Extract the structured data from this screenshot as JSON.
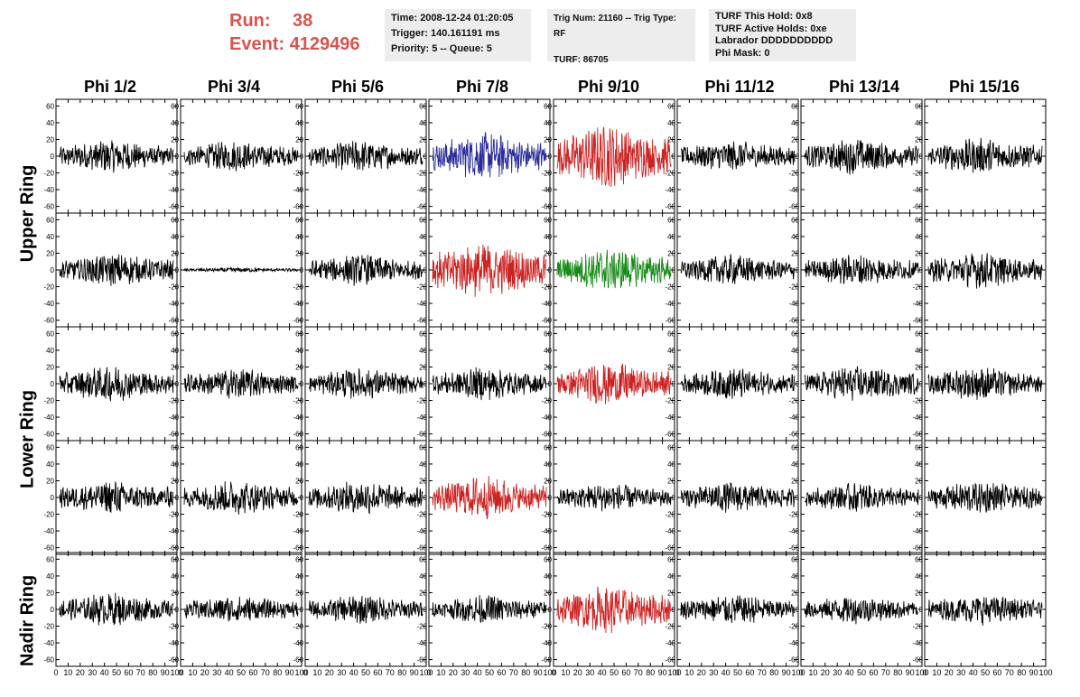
{
  "run": {
    "run_label": "Run:",
    "run_value": "38",
    "event_label": "Event:",
    "event_value": "4129496"
  },
  "info_box_1": {
    "time": "Time: 2008-12-24 01:20:05",
    "trigger": "Trigger: 140.161191 ms",
    "priority": "Priority: 5 -- Queue: 5"
  },
  "info_box_2": {
    "trig": "Trig Num: 21160 -- Trig Type: RF",
    "turf": "TURF: 86705"
  },
  "info_box_3": {
    "hold": "TURF This Hold: 0x8",
    "active": "TURF Active Holds: 0xe",
    "labrador": "Labrador DDDDDDDDDD",
    "mask": "Phi Mask: 0"
  },
  "columns": [
    "Phi 1/2",
    "Phi 3/4",
    "Phi 5/6",
    "Phi 7/8",
    "Phi 9/10",
    "Phi 11/12",
    "Phi 13/14",
    "Phi 15/16"
  ],
  "rows": [
    "Upper Ring",
    "Lower Ring",
    "Nadir Ring"
  ],
  "y_ticks": [
    "60",
    "40",
    "20",
    "0",
    "-20",
    "-40",
    "-60"
  ],
  "x_ticks": [
    "0",
    "10",
    "20",
    "30",
    "40",
    "50",
    "60",
    "70",
    "80",
    "90",
    "100"
  ],
  "colors": {
    "black": "#000000",
    "blue": "#2a2a9a",
    "red": "#cc2222",
    "green": "#1a8a1a",
    "run_text": "#d9534f"
  },
  "panel_colors": [
    [
      "black",
      "black",
      "black",
      "blue",
      "red",
      "black",
      "black",
      "black"
    ],
    [
      "black",
      "black",
      "black",
      "red",
      "green",
      "black",
      "black",
      "black"
    ],
    [
      "black",
      "black",
      "black",
      "black",
      "red",
      "black",
      "black",
      "black"
    ],
    [
      "black",
      "black",
      "black",
      "red",
      "black",
      "black",
      "black",
      "black"
    ],
    [
      "black",
      "black",
      "black",
      "black",
      "red",
      "black",
      "black",
      "black"
    ]
  ],
  "panel_amplitude": [
    [
      14,
      13,
      13,
      20,
      26,
      13,
      15,
      15
    ],
    [
      14,
      2,
      13,
      24,
      18,
      13,
      13,
      15
    ],
    [
      15,
      13,
      13,
      14,
      18,
      13,
      15,
      14
    ],
    [
      14,
      14,
      14,
      18,
      12,
      13,
      12,
      14
    ],
    [
      14,
      12,
      12,
      12,
      20,
      13,
      12,
      13
    ]
  ]
}
